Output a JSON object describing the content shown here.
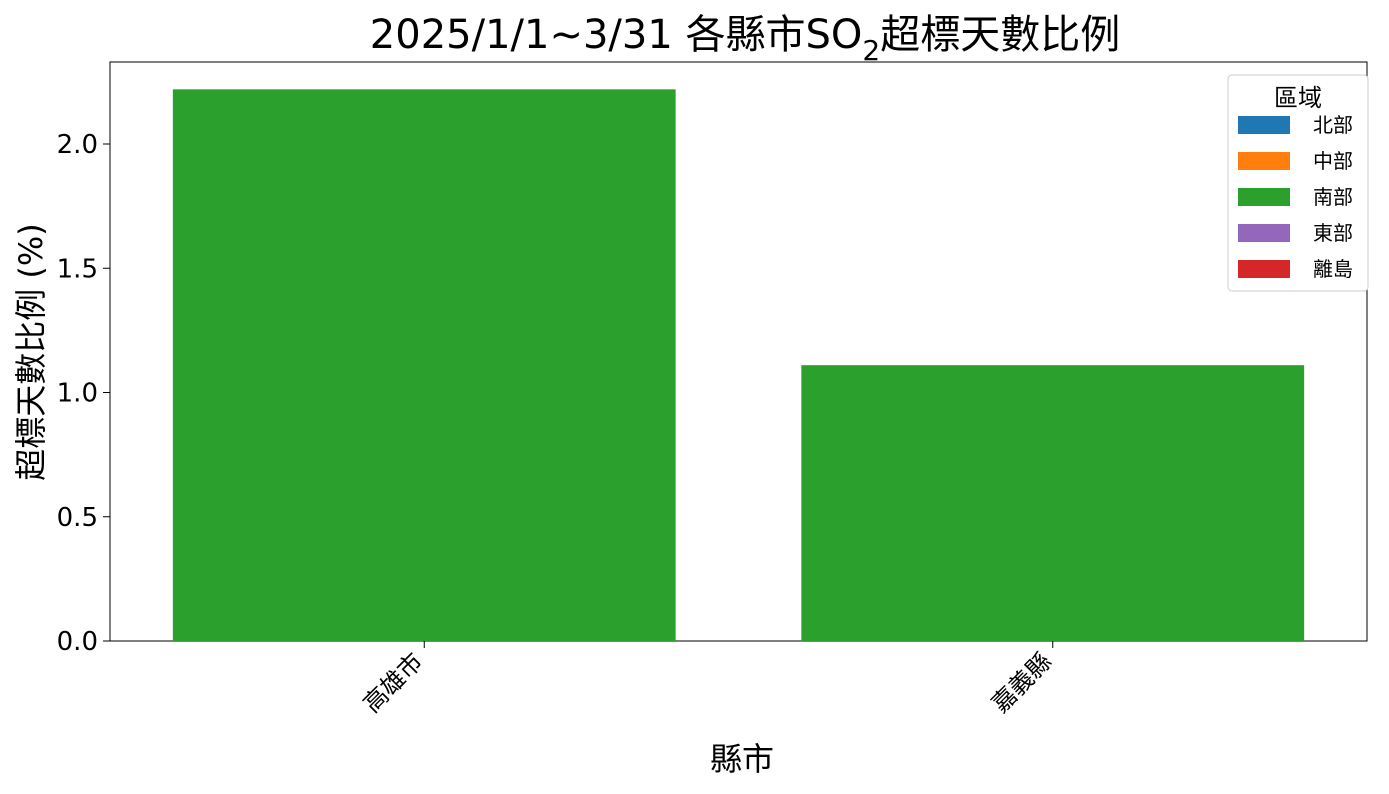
{
  "chart_data": {
    "type": "bar",
    "title_main": "2025/1/1~3/31 各縣市SO",
    "title_sub": "2",
    "title_rest": "超標天數比例",
    "xlabel": "縣市",
    "ylabel": "超標天數比例 (%)",
    "categories": [
      "高雄市",
      "嘉義縣"
    ],
    "values": [
      2.22,
      1.11
    ],
    "bar_regions": [
      "南部",
      "南部"
    ],
    "ylim": [
      0,
      2.33
    ],
    "yticks": [
      0.0,
      0.5,
      1.0,
      1.5,
      2.0
    ],
    "ytick_labels": [
      "0.0",
      "0.5",
      "1.0",
      "1.5",
      "2.0"
    ],
    "grid": false,
    "legend": {
      "title": "區域",
      "placement": "top-right",
      "entries": [
        {
          "label": "北部",
          "color": "#1f77b4"
        },
        {
          "label": "中部",
          "color": "#ff7f0e"
        },
        {
          "label": "南部",
          "color": "#2ca02c"
        },
        {
          "label": "東部",
          "color": "#9467bd"
        },
        {
          "label": "離島",
          "color": "#d62728"
        }
      ]
    }
  }
}
